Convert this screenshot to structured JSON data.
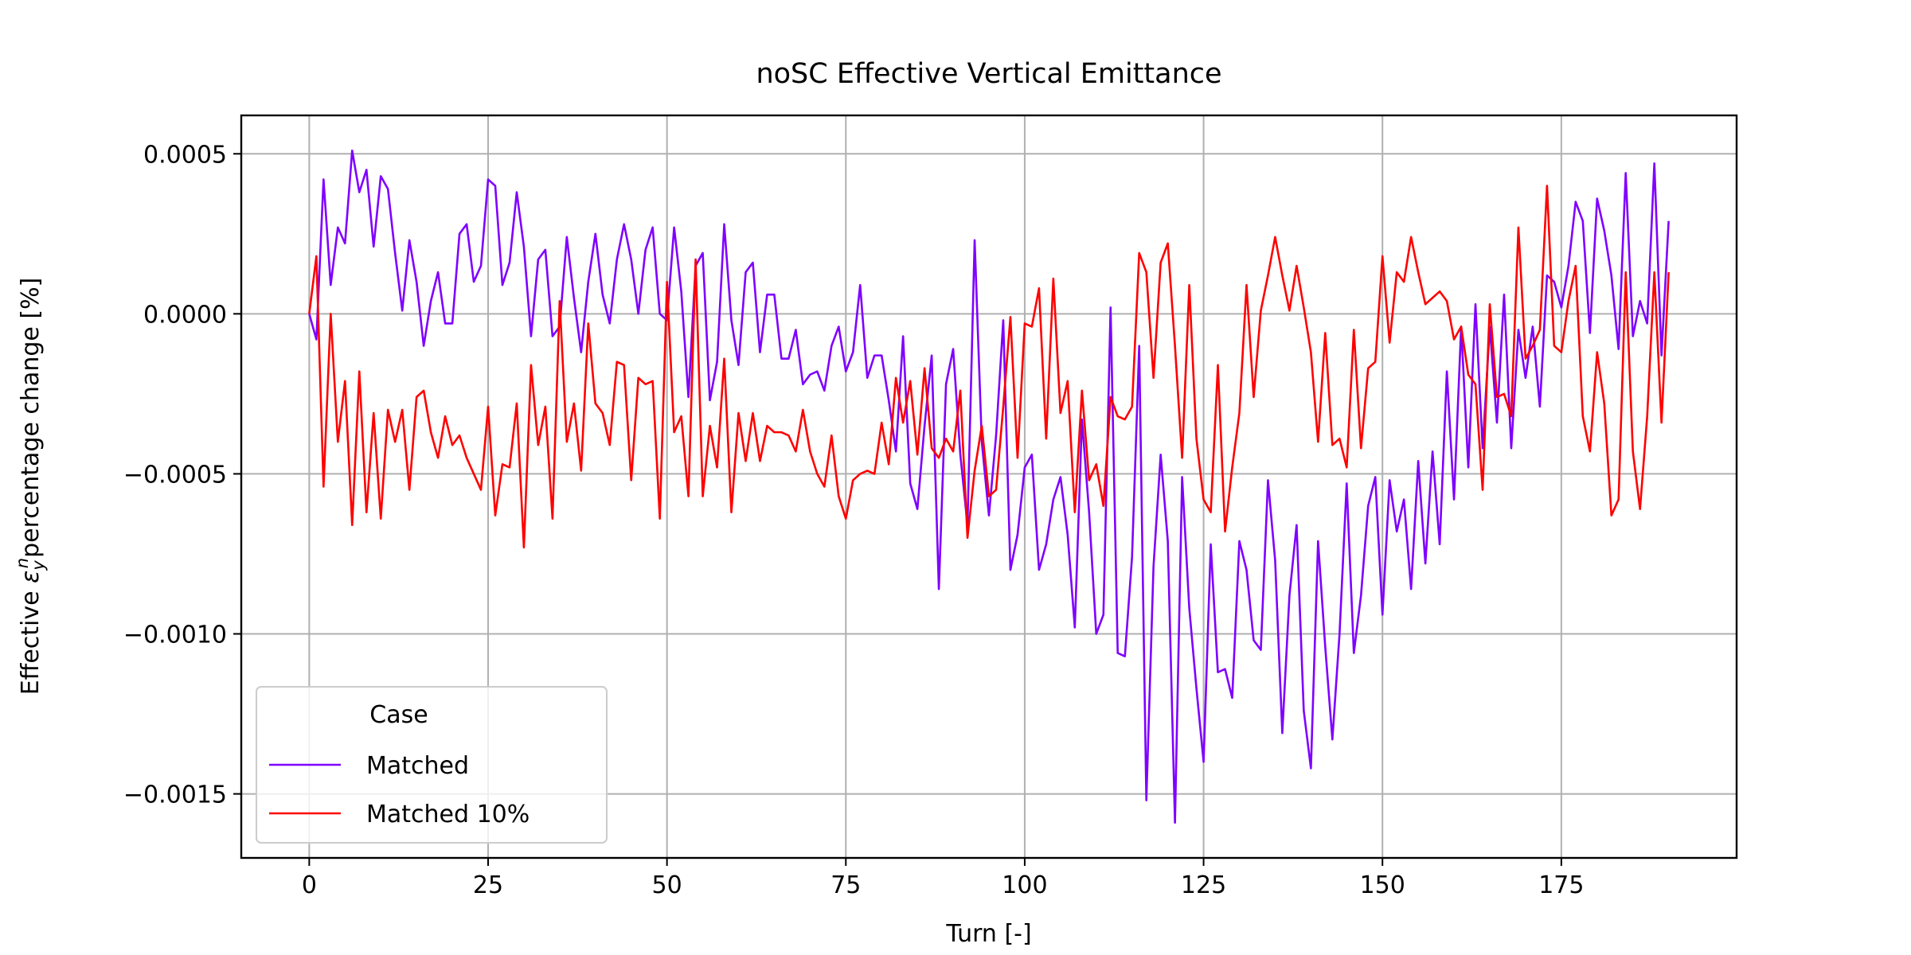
{
  "chart_data": {
    "type": "line",
    "title": "noSC Effective Vertical Emittance",
    "xlabel": "Turn [-]",
    "ylabel": {
      "before": "Effective",
      "symbol": "ε",
      "sub": "y",
      "sup": "n",
      "after": "percentage change [%]"
    },
    "legend_title": "Case",
    "legend_loc": "lower left",
    "grid": true,
    "xlim": [
      -9.5,
      199.5
    ],
    "xticks": [
      0,
      25,
      50,
      75,
      100,
      125,
      150,
      175
    ],
    "ylim": [
      -0.0017,
      0.00062
    ],
    "yticks": [
      {
        "value": -0.0015,
        "label": "−0.0015"
      },
      {
        "value": -0.001,
        "label": "−0.0010"
      },
      {
        "value": -0.0005,
        "label": "−0.0005"
      },
      {
        "value": 0,
        "label": "0.0000"
      },
      {
        "value": 0.0005,
        "label": "0.0005"
      }
    ],
    "x": [
      0,
      1,
      2,
      3,
      4,
      5,
      6,
      7,
      8,
      9,
      10,
      11,
      12,
      13,
      14,
      15,
      16,
      17,
      18,
      19,
      20,
      21,
      22,
      23,
      24,
      25,
      26,
      27,
      28,
      29,
      30,
      31,
      32,
      33,
      34,
      35,
      36,
      37,
      38,
      39,
      40,
      41,
      42,
      43,
      44,
      45,
      46,
      47,
      48,
      49,
      50,
      51,
      52,
      53,
      54,
      55,
      56,
      57,
      58,
      59,
      60,
      61,
      62,
      63,
      64,
      65,
      66,
      67,
      68,
      69,
      70,
      71,
      72,
      73,
      74,
      75,
      76,
      77,
      78,
      79,
      80,
      81,
      82,
      83,
      84,
      85,
      86,
      87,
      88,
      89,
      90,
      91,
      92,
      93,
      94,
      95,
      96,
      97,
      98,
      99,
      100,
      101,
      102,
      103,
      104,
      105,
      106,
      107,
      108,
      109,
      110,
      111,
      112,
      113,
      114,
      115,
      116,
      117,
      118,
      119,
      120,
      121,
      122,
      123,
      124,
      125,
      126,
      127,
      128,
      129,
      130,
      131,
      132,
      133,
      134,
      135,
      136,
      137,
      138,
      139,
      140,
      141,
      142,
      143,
      144,
      145,
      146,
      147,
      148,
      149,
      150,
      151,
      152,
      153,
      154,
      155,
      156,
      157,
      158,
      159,
      160,
      161,
      162,
      163,
      164,
      165,
      166,
      167,
      168,
      169,
      170,
      171,
      172,
      173,
      174,
      175,
      176,
      177,
      178,
      179,
      180,
      181,
      182,
      183,
      184,
      185,
      186,
      187,
      188,
      189,
      190
    ],
    "series": [
      {
        "name": "Matched",
        "color": "#7f00ff",
        "values": [
          0,
          -8e-05,
          0.00042,
          9e-05,
          0.00027,
          0.00022,
          0.00051,
          0.00038,
          0.00045,
          0.00021,
          0.00043,
          0.00039,
          0.00019,
          1e-05,
          0.00023,
          0.0001,
          -0.0001,
          4e-05,
          0.00013,
          -3e-05,
          -3e-05,
          0.00025,
          0.00028,
          0.0001,
          0.00015,
          0.00042,
          0.0004,
          9e-05,
          0.00016,
          0.00038,
          0.00021,
          -7e-05,
          0.00017,
          0.0002,
          -7e-05,
          -4e-05,
          0.00024,
          5e-05,
          -0.00012,
          0.0001,
          0.00025,
          6e-05,
          -3e-05,
          0.00017,
          0.00028,
          0.00017,
          0,
          0.0002,
          0.00027,
          0,
          -2e-05,
          0.00027,
          7e-05,
          -0.00026,
          0.00015,
          0.00019,
          -0.00027,
          -0.00015,
          0.00028,
          -2e-05,
          -0.00016,
          0.00013,
          0.00016,
          -0.00012,
          6e-05,
          6e-05,
          -0.00014,
          -0.00014,
          -5e-05,
          -0.00022,
          -0.00019,
          -0.00018,
          -0.00024,
          -0.0001,
          -4e-05,
          -0.00018,
          -0.00012,
          9e-05,
          -0.0002,
          -0.00013,
          -0.00013,
          -0.00027,
          -0.00043,
          -7e-05,
          -0.00053,
          -0.00061,
          -0.00035,
          -0.00013,
          -0.00086,
          -0.00022,
          -0.00011,
          -0.00044,
          -0.00066,
          0.00023,
          -0.0004,
          -0.00063,
          -0.00038,
          -2e-05,
          -0.0008,
          -0.00069,
          -0.00048,
          -0.00044,
          -0.0008,
          -0.00072,
          -0.00058,
          -0.00051,
          -0.00069,
          -0.00098,
          -0.00033,
          -0.00062,
          -0.001,
          -0.00094,
          2e-05,
          -0.00106,
          -0.00107,
          -0.00076,
          -0.0001,
          -0.00152,
          -0.00079,
          -0.00044,
          -0.00071,
          -0.00159,
          -0.00051,
          -0.00092,
          -0.00117,
          -0.0014,
          -0.00072,
          -0.00112,
          -0.00111,
          -0.0012,
          -0.00071,
          -0.0008,
          -0.00102,
          -0.00105,
          -0.00052,
          -0.00077,
          -0.00131,
          -0.00088,
          -0.00066,
          -0.00124,
          -0.00142,
          -0.00071,
          -0.00104,
          -0.00133,
          -0.001,
          -0.00053,
          -0.00106,
          -0.00088,
          -0.0006,
          -0.00051,
          -0.00094,
          -0.00052,
          -0.00068,
          -0.00058,
          -0.00086,
          -0.00046,
          -0.00078,
          -0.00043,
          -0.00072,
          -0.00018,
          -0.00058,
          -4e-05,
          -0.00048,
          3e-05,
          -0.00042,
          -4e-05,
          -0.00034,
          6e-05,
          -0.00042,
          -5e-05,
          -0.0002,
          -4e-05,
          -0.00029,
          0.00012,
          0.0001,
          2e-05,
          0.00015,
          0.00035,
          0.00029,
          -6e-05,
          0.00036,
          0.00026,
          0.00012,
          -0.00011,
          0.00044,
          -7e-05,
          4e-05,
          -3e-05,
          0.00047,
          -0.00013,
          0.00029
        ]
      },
      {
        "name": "Matched 10%",
        "color": "#ff0000",
        "values": [
          0,
          0.00018,
          -0.00054,
          0,
          -0.0004,
          -0.00021,
          -0.00066,
          -0.00018,
          -0.00062,
          -0.00031,
          -0.00064,
          -0.0003,
          -0.0004,
          -0.0003,
          -0.00055,
          -0.00026,
          -0.00024,
          -0.00037,
          -0.00045,
          -0.00032,
          -0.00041,
          -0.00038,
          -0.00045,
          -0.0005,
          -0.00055,
          -0.00029,
          -0.00063,
          -0.00047,
          -0.00048,
          -0.00028,
          -0.00073,
          -0.00016,
          -0.00041,
          -0.00029,
          -0.00064,
          4e-05,
          -0.0004,
          -0.00028,
          -0.00049,
          -3e-05,
          -0.00028,
          -0.00031,
          -0.00041,
          -0.00015,
          -0.00016,
          -0.00052,
          -0.0002,
          -0.00022,
          -0.00021,
          -0.00064,
          0.0001,
          -0.00037,
          -0.00032,
          -0.00057,
          0.00017,
          -0.00057,
          -0.00035,
          -0.00048,
          -0.00014,
          -0.00062,
          -0.00031,
          -0.00046,
          -0.00031,
          -0.00046,
          -0.00035,
          -0.00037,
          -0.00037,
          -0.00038,
          -0.00043,
          -0.0003,
          -0.00043,
          -0.0005,
          -0.00054,
          -0.00038,
          -0.00057,
          -0.00064,
          -0.00052,
          -0.0005,
          -0.00049,
          -0.0005,
          -0.00034,
          -0.00047,
          -0.0002,
          -0.00034,
          -0.00021,
          -0.00044,
          -0.00017,
          -0.00042,
          -0.00045,
          -0.00039,
          -0.00043,
          -0.00024,
          -0.0007,
          -0.00049,
          -0.00035,
          -0.00057,
          -0.00055,
          -0.00029,
          -1e-05,
          -0.00045,
          -3e-05,
          -4e-05,
          8e-05,
          -0.00039,
          0.00011,
          -0.00031,
          -0.00021,
          -0.00062,
          -0.00024,
          -0.00052,
          -0.00047,
          -0.0006,
          -0.00026,
          -0.00032,
          -0.00033,
          -0.00029,
          0.00019,
          0.00013,
          -0.0002,
          0.00016,
          0.00022,
          -0.0001,
          -0.00045,
          9e-05,
          -0.00039,
          -0.00058,
          -0.00062,
          -0.00016,
          -0.00068,
          -0.00048,
          -0.00031,
          9e-05,
          -0.00026,
          1e-05,
          0.00012,
          0.00024,
          0.00012,
          1e-05,
          0.00015,
          2e-05,
          -0.00012,
          -0.0004,
          -6e-05,
          -0.00041,
          -0.00039,
          -0.00048,
          -5e-05,
          -0.00042,
          -0.00017,
          -0.00015,
          0.00018,
          -9e-05,
          0.00013,
          0.0001,
          0.00024,
          0.00013,
          3e-05,
          5e-05,
          7e-05,
          4e-05,
          -8e-05,
          -4e-05,
          -0.00019,
          -0.00022,
          -0.00055,
          3e-05,
          -0.00026,
          -0.00025,
          -0.00032,
          0.00027,
          -0.00014,
          -0.0001,
          -5e-05,
          0.0004,
          -0.0001,
          -0.00012,
          4e-05,
          0.00015,
          -0.00032,
          -0.00043,
          -0.00012,
          -0.00028,
          -0.00063,
          -0.00058,
          0.00013,
          -0.00043,
          -0.00061,
          -0.00032,
          0.00013,
          -0.00034,
          0.00013
        ]
      }
    ]
  }
}
